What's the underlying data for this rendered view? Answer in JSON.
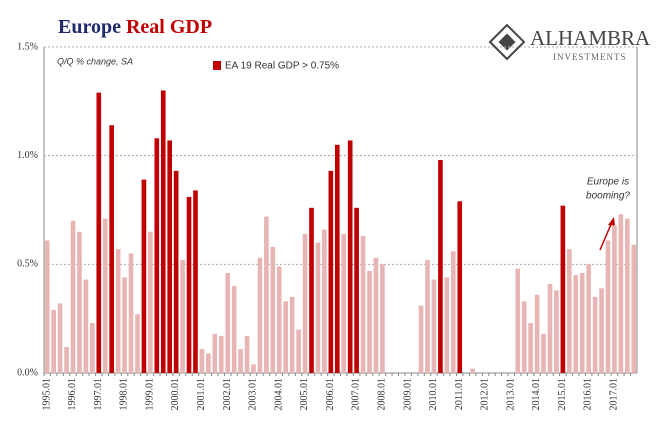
{
  "chart_data": {
    "type": "bar",
    "title": [
      "Europe",
      "Real GDP"
    ],
    "subtitle": "Q/Q % change, SA",
    "annotation": [
      "Europe is",
      "booming?"
    ],
    "logo": {
      "name": "ALHAMBRA",
      "tagline": "INVESTMENTS"
    },
    "categories": [
      "1995.01",
      null,
      null,
      null,
      "1996.01",
      null,
      null,
      null,
      "1997.01",
      null,
      null,
      null,
      "1998.01",
      null,
      null,
      null,
      "1999.01",
      null,
      null,
      null,
      "2000.01",
      null,
      null,
      null,
      "2001.01",
      null,
      null,
      null,
      "2002.01",
      null,
      null,
      null,
      "2003.01",
      null,
      null,
      null,
      "2004.01",
      null,
      null,
      null,
      "2005.01",
      null,
      null,
      null,
      "2006.01",
      null,
      null,
      null,
      "2007.01",
      null,
      null,
      null,
      "2008.01",
      null,
      null,
      null,
      "2009.01",
      null,
      null,
      null,
      "2010.01",
      null,
      null,
      null,
      "2011.01",
      null,
      null,
      null,
      "2012.01",
      null,
      null,
      null,
      "2013.01",
      null,
      null,
      null,
      "2014.01",
      null,
      null,
      null,
      "2015.01",
      null,
      null,
      null,
      "2016.01",
      null,
      null,
      null,
      "2017.01",
      null,
      null,
      null
    ],
    "series": [
      {
        "name": "EA 19 Real GDP > 0.75%",
        "color": "#c00000",
        "values": [
          null,
          null,
          null,
          null,
          null,
          null,
          null,
          null,
          1.29,
          null,
          1.14,
          null,
          null,
          null,
          null,
          0.89,
          null,
          1.08,
          1.3,
          1.07,
          0.93,
          null,
          0.81,
          0.84,
          null,
          null,
          null,
          null,
          null,
          null,
          null,
          null,
          null,
          null,
          null,
          null,
          null,
          null,
          null,
          null,
          null,
          0.76,
          null,
          null,
          0.93,
          1.05,
          null,
          1.07,
          0.76,
          null,
          null,
          null,
          null,
          null,
          null,
          null,
          null,
          null,
          null,
          null,
          null,
          0.98,
          null,
          null,
          0.79,
          null,
          null,
          null,
          null,
          null,
          null,
          null,
          null,
          null,
          null,
          null,
          null,
          null,
          null,
          null,
          0.77,
          null,
          null,
          null,
          null,
          null,
          null,
          null,
          null,
          null,
          null,
          null
        ]
      },
      {
        "color": "#e8b5b5",
        "values": [
          0.61,
          0.29,
          0.32,
          0.12,
          0.7,
          0.65,
          0.43,
          0.23,
          null,
          0.71,
          null,
          0.57,
          0.44,
          0.55,
          0.27,
          null,
          0.65,
          null,
          null,
          null,
          null,
          0.52,
          null,
          null,
          0.11,
          0.09,
          0.18,
          0.17,
          0.46,
          0.4,
          0.11,
          0.17,
          0.04,
          0.53,
          0.72,
          0.58,
          0.49,
          0.33,
          0.35,
          0.2,
          0.64,
          null,
          0.6,
          0.66,
          null,
          null,
          0.64,
          null,
          null,
          0.63,
          0.47,
          0.53,
          0.5,
          null,
          null,
          null,
          null,
          null,
          0.31,
          0.52,
          0.43,
          null,
          0.44,
          0.56,
          null,
          null,
          0.02,
          null,
          null,
          null,
          null,
          null,
          null,
          0.48,
          0.33,
          0.23,
          0.36,
          0.18,
          0.41,
          0.38,
          null,
          0.57,
          0.45,
          0.46,
          0.5,
          0.35,
          0.39,
          0.61,
          0.68,
          0.73,
          0.71,
          0.59
        ]
      }
    ],
    "ylim": [
      0,
      1.5
    ],
    "yticks": [
      {
        "value": 0,
        "label": "0.0%"
      },
      {
        "value": 0.5,
        "label": "0.5%"
      },
      {
        "value": 1.0,
        "label": "1.0%"
      },
      {
        "value": 1.5,
        "label": "1.5%"
      }
    ],
    "grid": true
  }
}
